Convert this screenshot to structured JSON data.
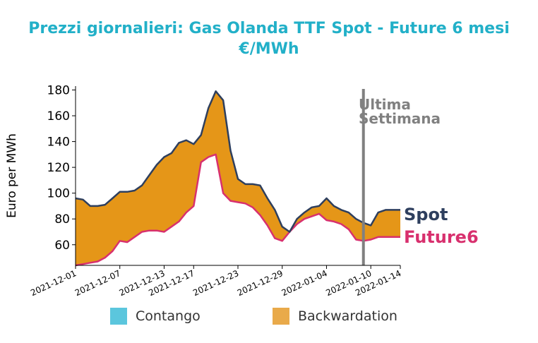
{
  "title": {
    "line1": "Prezzi giornalieri: Gas Olanda TTF Spot - Future 6 mesi",
    "line2": "€/MWh"
  },
  "colors": {
    "title": "#22b0c8",
    "spot": "#2e3f5e",
    "future": "#d8306e",
    "backwardation": "#e59618",
    "contango": "#5bc6dd",
    "marker": "#808080"
  },
  "chart_data": {
    "type": "line",
    "ylabel": "Euro per MWh",
    "ylim": [
      44,
      183
    ],
    "yticks": [
      60,
      80,
      100,
      120,
      140,
      160,
      180
    ],
    "xlim": [
      "2021-12-01",
      "2022-01-14"
    ],
    "xticks": [
      "2021-12-01",
      "2021-12-07",
      "2021-12-13",
      "2021-12-17",
      "2021-12-23",
      "2021-12-29",
      "2022-01-04",
      "2022-01-10",
      "2022-01-14"
    ],
    "x": [
      "2021-12-01",
      "2021-12-02",
      "2021-12-03",
      "2021-12-04",
      "2021-12-05",
      "2021-12-06",
      "2021-12-07",
      "2021-12-08",
      "2021-12-09",
      "2021-12-10",
      "2021-12-11",
      "2021-12-12",
      "2021-12-13",
      "2021-12-14",
      "2021-12-15",
      "2021-12-16",
      "2021-12-17",
      "2021-12-18",
      "2021-12-19",
      "2021-12-20",
      "2021-12-21",
      "2021-12-22",
      "2021-12-23",
      "2021-12-24",
      "2021-12-25",
      "2021-12-26",
      "2021-12-27",
      "2021-12-28",
      "2021-12-29",
      "2021-12-30",
      "2021-12-31",
      "2022-01-01",
      "2022-01-02",
      "2022-01-03",
      "2022-01-04",
      "2022-01-05",
      "2022-01-06",
      "2022-01-07",
      "2022-01-08",
      "2022-01-09",
      "2022-01-10",
      "2022-01-11",
      "2022-01-12",
      "2022-01-13",
      "2022-01-14"
    ],
    "series": [
      {
        "name": "Spot",
        "values": [
          96,
          95,
          90,
          90,
          91,
          96,
          101,
          101,
          102,
          106,
          114,
          122,
          128,
          131,
          139,
          141,
          138,
          145,
          166,
          179,
          172,
          133,
          111,
          107,
          107,
          106,
          96,
          87,
          74,
          70,
          80,
          85,
          89,
          90,
          96,
          90,
          87,
          85,
          80,
          77,
          75,
          85,
          87,
          87,
          87
        ]
      },
      {
        "name": "Future6",
        "values": [
          44,
          45,
          46,
          47,
          50,
          55,
          63,
          62,
          66,
          70,
          71,
          71,
          70,
          74,
          78,
          85,
          90,
          124,
          128,
          130,
          100,
          94,
          93,
          92,
          89,
          83,
          75,
          65,
          63,
          70,
          76,
          80,
          82,
          84,
          79,
          78,
          76,
          72,
          64,
          63,
          64,
          66,
          66,
          66,
          66
        ]
      }
    ],
    "annotation": {
      "x": "2022-01-09",
      "label_line1": "Ultima",
      "label_line2": "Settimana"
    },
    "legend": {
      "position": "bottom",
      "items": [
        {
          "label": "Contango",
          "color": "#5bc6dd"
        },
        {
          "label": "Backwardation",
          "color": "#e9aa4a"
        }
      ]
    },
    "grid": false
  }
}
